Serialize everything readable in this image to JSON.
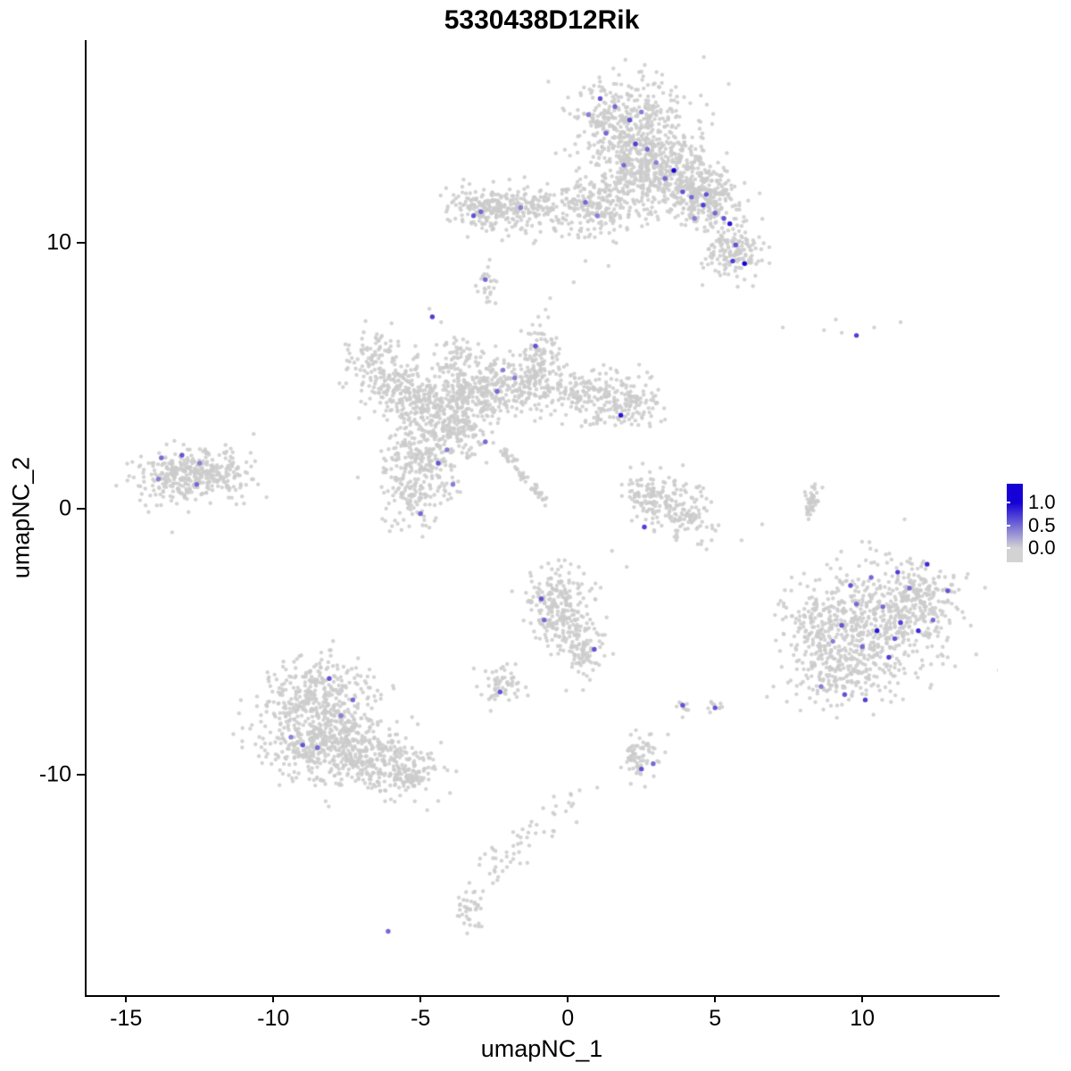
{
  "chart_data": {
    "type": "scatter",
    "title": "5330438D12Rik",
    "xlabel": "umapNC_1",
    "ylabel": "umapNC_2",
    "xlim": [
      -16.4,
      14.6
    ],
    "ylim": [
      -18.3,
      17.6
    ],
    "x_ticks": [
      -15,
      -10,
      -5,
      0,
      5,
      10
    ],
    "x_tick_labels": [
      "-15",
      "-10",
      "-5",
      "0",
      "5",
      "10"
    ],
    "y_ticks": [
      -10,
      0,
      10
    ],
    "y_tick_labels": [
      "-10",
      "0",
      "10"
    ],
    "grid": false,
    "point_color_low": "#d3d3d3",
    "point_color_high": "#1500d6",
    "legend": {
      "position": "right",
      "tick_labels": [
        "1.0",
        "0.5",
        "0.0"
      ]
    },
    "seed": 1337,
    "clusters": [
      [
        2.2,
        14.2,
        1.0,
        0.95,
        480
      ],
      [
        3.0,
        13.0,
        0.8,
        0.7,
        200
      ],
      [
        4.0,
        12.1,
        0.85,
        0.6,
        240
      ],
      [
        4.8,
        11.4,
        0.6,
        0.5,
        150
      ],
      [
        5.7,
        9.7,
        0.55,
        0.5,
        150
      ],
      [
        -2.8,
        11.3,
        0.6,
        0.4,
        170
      ],
      [
        -1.4,
        11.25,
        0.7,
        0.38,
        150
      ],
      [
        0.9,
        11.3,
        0.85,
        0.55,
        220
      ],
      [
        2.0,
        12.3,
        0.5,
        0.6,
        80
      ],
      [
        -2.75,
        8.4,
        0.15,
        0.35,
        25
      ],
      [
        -6.5,
        5.5,
        0.6,
        0.6,
        140
      ],
      [
        -5.4,
        4.3,
        0.6,
        0.5,
        120
      ],
      [
        -4.4,
        3.9,
        0.8,
        0.6,
        200
      ],
      [
        -3.3,
        4.4,
        0.7,
        0.5,
        150
      ],
      [
        -2.0,
        4.6,
        0.8,
        0.55,
        180
      ],
      [
        -0.95,
        5.5,
        0.35,
        0.75,
        120
      ],
      [
        0.3,
        4.3,
        0.8,
        0.5,
        150
      ],
      [
        1.9,
        4.0,
        0.65,
        0.5,
        150
      ],
      [
        -3.6,
        3.0,
        0.5,
        0.5,
        100
      ],
      [
        -4.8,
        2.2,
        0.65,
        0.6,
        160
      ],
      [
        -5.2,
        0.9,
        0.6,
        0.8,
        180
      ],
      [
        -3.7,
        5.6,
        0.35,
        0.5,
        60
      ],
      [
        -13.3,
        1.2,
        0.7,
        0.5,
        190
      ],
      [
        -12.2,
        1.3,
        0.75,
        0.45,
        180
      ],
      [
        2.6,
        0.6,
        0.4,
        0.5,
        70
      ],
      [
        3.4,
        0.2,
        0.55,
        0.5,
        100
      ],
      [
        4.3,
        -0.5,
        0.4,
        0.4,
        60
      ],
      [
        10.4,
        -4.3,
        1.2,
        1.1,
        550
      ],
      [
        11.9,
        -3.2,
        0.7,
        0.6,
        150
      ],
      [
        9.1,
        -6.2,
        0.8,
        0.55,
        150
      ],
      [
        8.3,
        -4.6,
        0.5,
        0.7,
        100
      ],
      [
        -8.7,
        -8.0,
        0.95,
        0.85,
        330
      ],
      [
        -8.2,
        -9.0,
        0.9,
        0.7,
        270
      ],
      [
        -8.3,
        -6.6,
        0.85,
        0.5,
        150
      ],
      [
        -6.7,
        -9.4,
        0.75,
        0.55,
        200
      ],
      [
        -5.4,
        -10.0,
        0.6,
        0.4,
        130
      ],
      [
        -0.5,
        -3.2,
        0.55,
        0.5,
        130
      ],
      [
        -0.2,
        -4.4,
        0.5,
        0.6,
        130
      ],
      [
        0.5,
        -5.3,
        0.35,
        0.5,
        80
      ],
      [
        -2.3,
        -6.6,
        0.35,
        0.35,
        60
      ],
      [
        3.9,
        -7.4,
        0.15,
        0.15,
        10
      ],
      [
        5.0,
        -7.45,
        0.15,
        0.15,
        10
      ],
      [
        2.5,
        -9.4,
        0.3,
        0.45,
        70
      ],
      [
        -3.3,
        -14.9,
        0.25,
        0.45,
        40
      ]
    ],
    "lines": [
      [
        -2.2,
        2.2,
        -0.8,
        0.3,
        0.08,
        55
      ],
      [
        8.1,
        -0.5,
        8.4,
        0.9,
        0.1,
        45
      ],
      [
        0.1,
        -10.9,
        -2.9,
        -13.9,
        0.28,
        55
      ]
    ],
    "singles": [
      [
        7.3,
        6.8
      ],
      [
        8.7,
        6.7
      ],
      [
        9.3,
        6.6
      ],
      [
        10.4,
        6.8
      ],
      [
        11.3,
        7.0
      ],
      [
        9.1,
        7.1
      ],
      [
        -4.3,
        7.0
      ],
      [
        -4.7,
        7.5
      ],
      [
        -1.0,
        7.2
      ],
      [
        -0.6,
        7.9
      ],
      [
        0.2,
        8.5
      ],
      [
        0.6,
        9.3
      ],
      [
        -3.8,
        11.4
      ],
      [
        -4.0,
        10.8
      ],
      [
        -3.4,
        10.2
      ],
      [
        7.6,
        -2.6
      ],
      [
        7.9,
        -7.6
      ],
      [
        12.9,
        -5.6
      ],
      [
        13.4,
        -3.9
      ],
      [
        13.1,
        -2.6
      ],
      [
        6.6,
        -0.6
      ],
      [
        5.9,
        -1.2
      ],
      [
        2.0,
        -2.2
      ],
      [
        1.5,
        -1.6
      ],
      [
        0.4,
        -10.6
      ],
      [
        1.0,
        -10.5
      ],
      [
        0.3,
        -11.8
      ],
      [
        3.4,
        -8.5
      ],
      [
        -4.4,
        -11.0
      ],
      [
        -4.0,
        -10.7
      ],
      [
        6.0,
        8.6
      ]
    ],
    "highlights": [
      [
        1.1,
        15.4,
        0.6
      ],
      [
        1.6,
        15.1,
        0.5
      ],
      [
        0.7,
        14.8,
        0.4
      ],
      [
        2.1,
        14.6,
        0.6
      ],
      [
        2.5,
        14.9,
        0.4
      ],
      [
        1.3,
        14.1,
        0.5
      ],
      [
        2.3,
        13.7,
        0.7
      ],
      [
        2.7,
        13.5,
        0.5
      ],
      [
        1.9,
        12.9,
        0.5
      ],
      [
        3.0,
        13.0,
        0.4
      ],
      [
        3.3,
        12.4,
        0.5
      ],
      [
        3.6,
        12.7,
        1.0
      ],
      [
        3.9,
        11.9,
        0.6
      ],
      [
        4.2,
        11.7,
        0.5
      ],
      [
        4.7,
        11.8,
        0.6
      ],
      [
        4.6,
        11.4,
        0.7
      ],
      [
        5.0,
        11.1,
        0.5
      ],
      [
        5.3,
        10.9,
        0.6
      ],
      [
        5.5,
        10.7,
        0.9
      ],
      [
        4.3,
        10.9,
        0.4
      ],
      [
        5.7,
        9.9,
        0.6
      ],
      [
        6.0,
        9.2,
        1.0
      ],
      [
        5.6,
        9.3,
        0.7
      ],
      [
        -3.2,
        11.0,
        0.6
      ],
      [
        -2.95,
        11.15,
        0.5
      ],
      [
        -1.6,
        11.3,
        0.4
      ],
      [
        0.6,
        11.5,
        0.5
      ],
      [
        1.0,
        11.0,
        0.4
      ],
      [
        -2.8,
        8.6,
        0.5
      ],
      [
        -4.6,
        7.2,
        0.7
      ],
      [
        -1.1,
        6.1,
        0.6
      ],
      [
        -1.8,
        4.9,
        0.4
      ],
      [
        -2.4,
        4.4,
        0.5
      ],
      [
        -2.2,
        5.2,
        0.4
      ],
      [
        1.8,
        3.5,
        0.9
      ],
      [
        -4.4,
        1.7,
        0.6
      ],
      [
        -4.1,
        2.2,
        0.4
      ],
      [
        -2.8,
        2.5,
        0.5
      ],
      [
        -5.0,
        -0.2,
        0.5
      ],
      [
        -3.9,
        0.9,
        0.4
      ],
      [
        -13.8,
        1.9,
        0.5
      ],
      [
        -13.1,
        2.0,
        0.6
      ],
      [
        -12.5,
        1.7,
        0.4
      ],
      [
        -13.9,
        1.1,
        0.4
      ],
      [
        -12.6,
        0.9,
        0.5
      ],
      [
        2.6,
        -0.7,
        0.7
      ],
      [
        9.8,
        6.5,
        0.7
      ],
      [
        9.6,
        -2.9,
        0.6
      ],
      [
        10.3,
        -2.6,
        0.5
      ],
      [
        11.2,
        -2.4,
        0.7
      ],
      [
        12.2,
        -2.1,
        0.8
      ],
      [
        12.9,
        -3.1,
        0.6
      ],
      [
        10.7,
        -3.7,
        0.5
      ],
      [
        9.8,
        -3.6,
        0.5
      ],
      [
        11.3,
        -4.3,
        0.7
      ],
      [
        10.5,
        -4.6,
        0.9
      ],
      [
        11.1,
        -4.9,
        0.6
      ],
      [
        11.9,
        -4.6,
        0.8
      ],
      [
        10.0,
        -5.2,
        0.5
      ],
      [
        9.3,
        -4.4,
        0.6
      ],
      [
        9.0,
        -5.0,
        0.4
      ],
      [
        10.9,
        -5.6,
        0.7
      ],
      [
        9.4,
        -7.0,
        0.6
      ],
      [
        10.1,
        -7.2,
        0.7
      ],
      [
        8.6,
        -6.7,
        0.4
      ],
      [
        12.4,
        -4.2,
        0.5
      ],
      [
        11.6,
        -3.0,
        0.5
      ],
      [
        -8.1,
        -6.4,
        0.6
      ],
      [
        -7.3,
        -7.2,
        0.5
      ],
      [
        -9.0,
        -8.9,
        0.6
      ],
      [
        -8.5,
        -9.0,
        0.5
      ],
      [
        -9.4,
        -8.6,
        0.4
      ],
      [
        -7.7,
        -7.8,
        0.4
      ],
      [
        -0.9,
        -3.4,
        0.6
      ],
      [
        -0.8,
        -4.2,
        0.5
      ],
      [
        0.9,
        -5.3,
        0.6
      ],
      [
        -2.3,
        -6.9,
        0.6
      ],
      [
        2.5,
        -9.8,
        0.6
      ],
      [
        2.9,
        -9.6,
        0.5
      ],
      [
        3.9,
        -7.4,
        0.6
      ],
      [
        5.0,
        -7.5,
        0.6
      ],
      [
        -6.1,
        -15.9,
        0.5
      ]
    ]
  }
}
